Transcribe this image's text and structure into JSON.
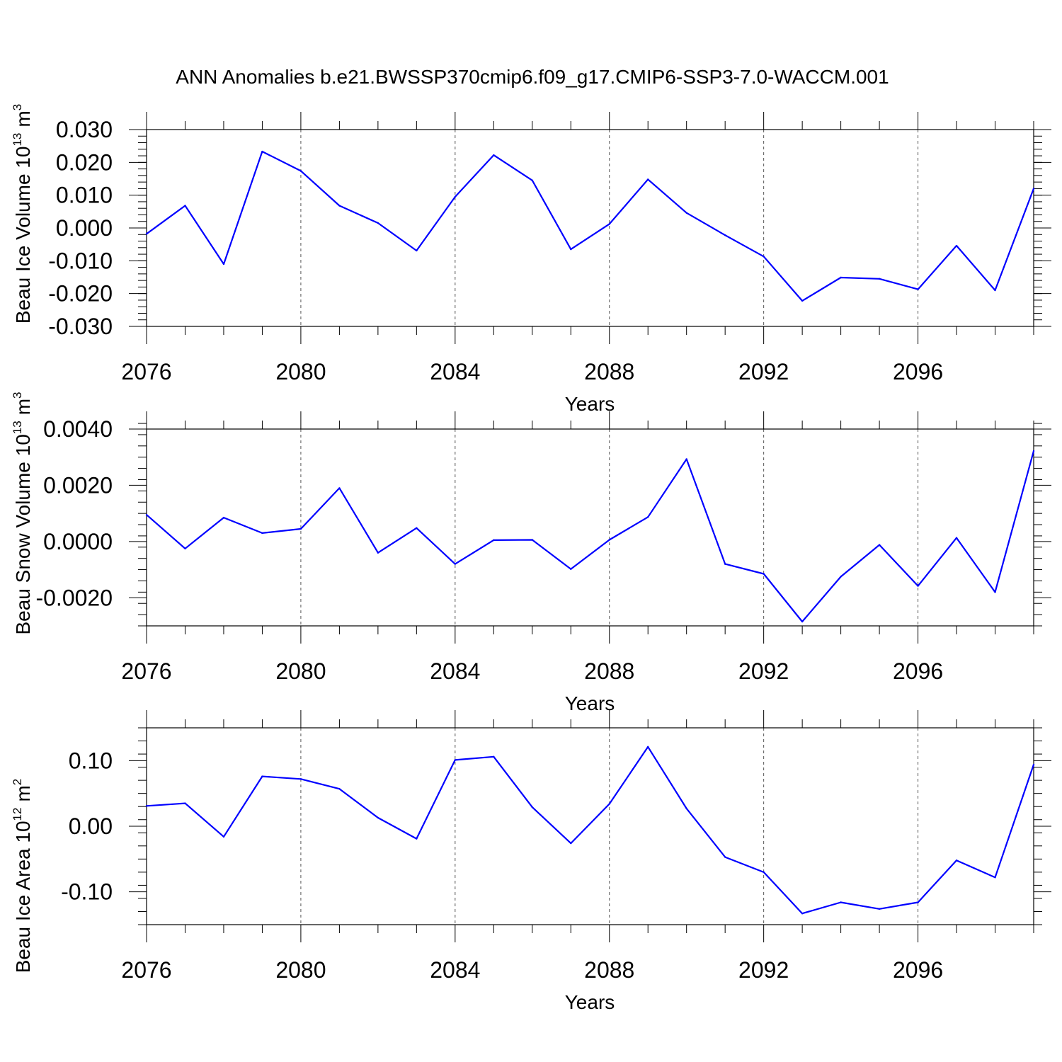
{
  "title": "ANN Anomalies b.e21.BWSSP370cmip6.f09_g17.CMIP6-SSP3-7.0-WACCM.001",
  "chart_data": [
    {
      "type": "line",
      "ylabel": "Beau Ice Volume 10",
      "ylabel_exponent": "13",
      "ylabel_unit": "m",
      "ylabel_unit_exponent": "3",
      "xlabel": "Years",
      "xlim": [
        2076,
        2099
      ],
      "ylim": [
        -0.03,
        0.03
      ],
      "x_tick_labels": [
        "2076",
        "2080",
        "2084",
        "2088",
        "2092",
        "2096"
      ],
      "y_tick_labels": [
        "0.030",
        "0.020",
        "0.010",
        "0.000",
        "-0.010",
        "-0.020",
        "-0.030"
      ],
      "grid": "dashed vertical lines at labeled years",
      "color": "#0000ff",
      "x": [
        2076,
        2077,
        2078,
        2079,
        2080,
        2081,
        2082,
        2083,
        2084,
        2085,
        2086,
        2087,
        2088,
        2089,
        2090,
        2091,
        2092,
        2093,
        2094,
        2095,
        2096,
        2097,
        2098,
        2099
      ],
      "values": [
        -0.0018,
        0.0068,
        -0.011,
        0.0233,
        0.0174,
        0.0068,
        0.0015,
        -0.0069,
        0.0095,
        0.0222,
        0.0145,
        -0.0065,
        0.0012,
        0.0148,
        0.0046,
        -0.0022,
        -0.0087,
        -0.0222,
        -0.0151,
        -0.0155,
        -0.0187,
        -0.0054,
        -0.019,
        0.012
      ]
    },
    {
      "type": "line",
      "ylabel": "Beau Snow Volume 10",
      "ylabel_exponent": "13",
      "ylabel_unit": "m",
      "ylabel_unit_exponent": "3",
      "xlabel": "Years",
      "xlim": [
        2076,
        2099
      ],
      "ylim": [
        -0.003,
        0.004
      ],
      "x_tick_labels": [
        "2076",
        "2080",
        "2084",
        "2088",
        "2092",
        "2096"
      ],
      "y_tick_labels": [
        "0.0040",
        "0.0020",
        "0.0000",
        "-0.0020"
      ],
      "grid": "dashed vertical lines at labeled years",
      "color": "#0000ff",
      "x": [
        2076,
        2077,
        2078,
        2079,
        2080,
        2081,
        2082,
        2083,
        2084,
        2085,
        2086,
        2087,
        2088,
        2089,
        2090,
        2091,
        2092,
        2093,
        2094,
        2095,
        2096,
        2097,
        2098,
        2099
      ],
      "values": [
        0.00095,
        -0.00025,
        0.00085,
        0.0003,
        0.00045,
        0.0019,
        -0.0004,
        0.00048,
        -0.0008,
        5e-05,
        6e-05,
        -0.00098,
        6e-05,
        0.00087,
        0.00293,
        -0.0008,
        -0.00115,
        -0.00285,
        -0.00125,
        -0.00012,
        -0.00158,
        0.00013,
        -0.0018,
        0.00322
      ]
    },
    {
      "type": "line",
      "ylabel": "Beau Ice Area 10",
      "ylabel_exponent": "12",
      "ylabel_unit": "m",
      "ylabel_unit_exponent": "2",
      "xlabel": "Years",
      "xlim": [
        2076,
        2099
      ],
      "ylim": [
        -0.15,
        0.15
      ],
      "x_tick_labels": [
        "2076",
        "2080",
        "2084",
        "2088",
        "2092",
        "2096"
      ],
      "y_tick_labels": [
        "0.10",
        "0.00",
        "-0.10"
      ],
      "grid": "dashed vertical lines at labeled years",
      "color": "#0000ff",
      "x": [
        2076,
        2077,
        2078,
        2079,
        2080,
        2081,
        2082,
        2083,
        2084,
        2085,
        2086,
        2087,
        2088,
        2089,
        2090,
        2091,
        2092,
        2093,
        2094,
        2095,
        2096,
        2097,
        2098,
        2099
      ],
      "values": [
        0.031,
        0.035,
        -0.016,
        0.076,
        0.072,
        0.057,
        0.013,
        -0.019,
        0.101,
        0.106,
        0.029,
        -0.026,
        0.034,
        0.121,
        0.027,
        -0.047,
        -0.07,
        -0.133,
        -0.116,
        -0.126,
        -0.116,
        -0.052,
        -0.078,
        0.094
      ]
    }
  ]
}
